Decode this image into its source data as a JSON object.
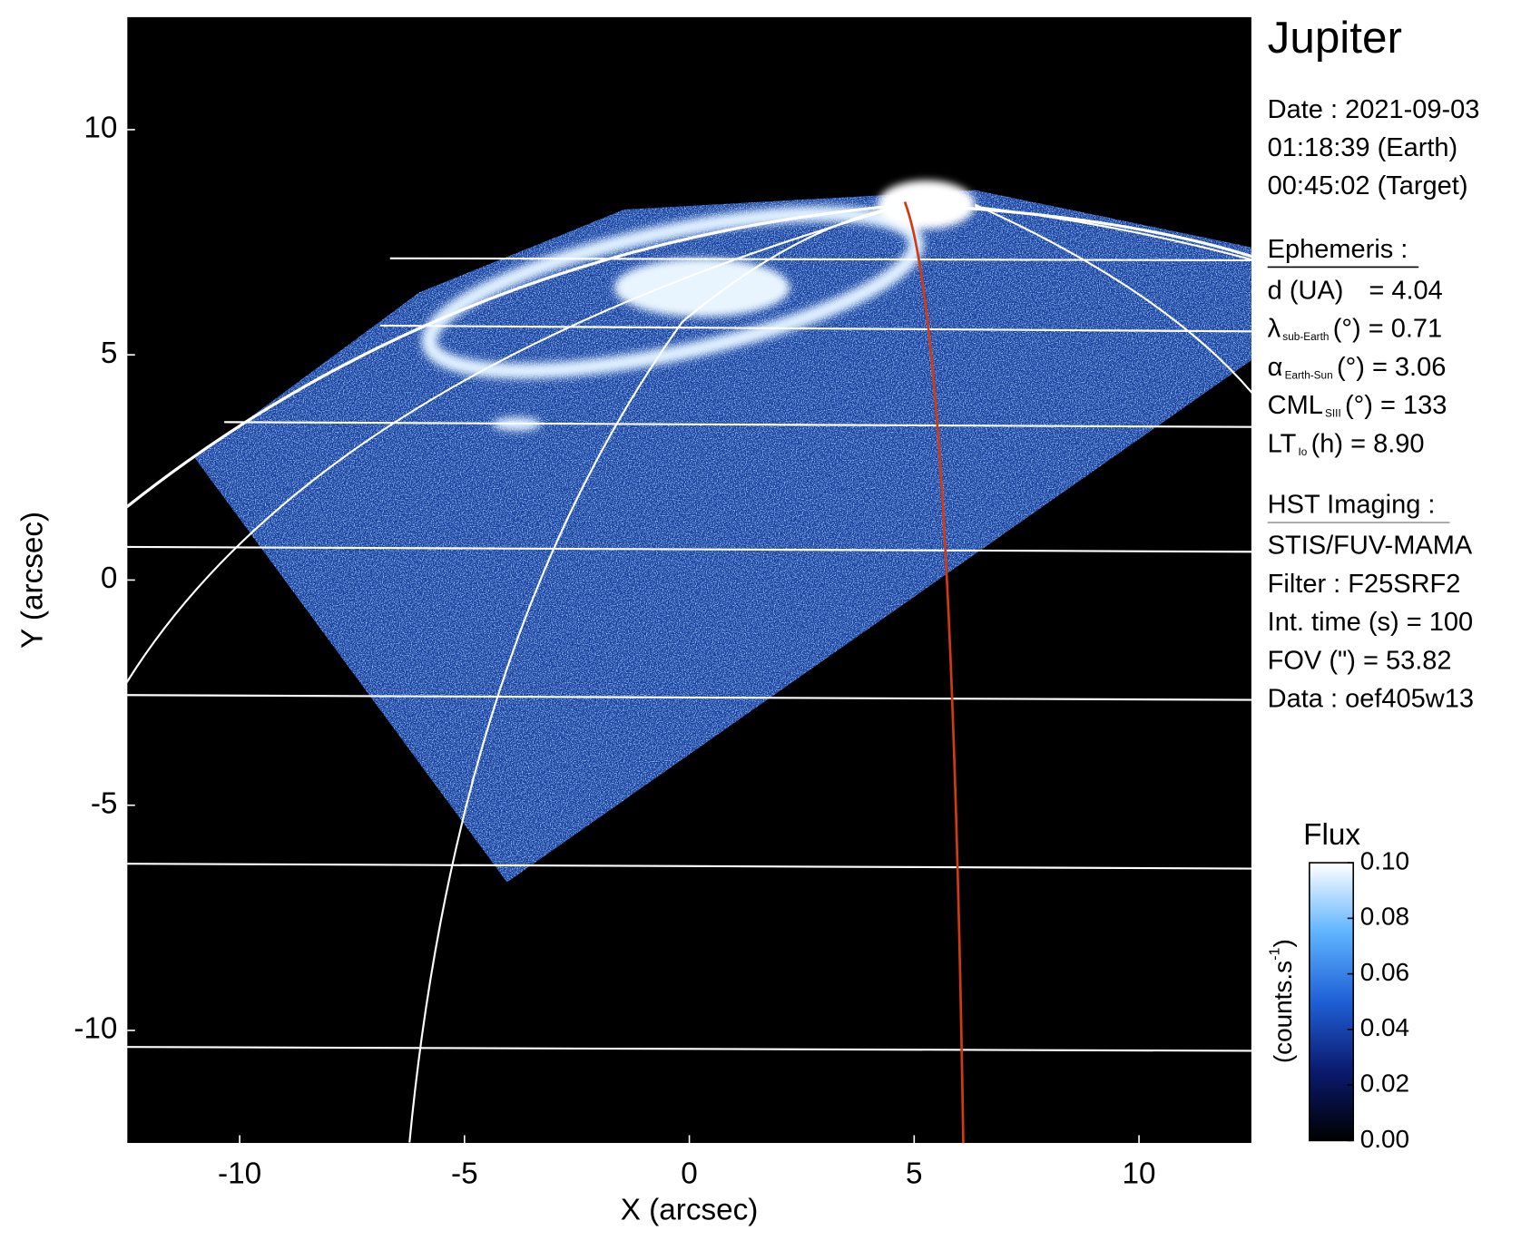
{
  "chart_data": {
    "type": "image",
    "xlabel": "X (arcsec)",
    "ylabel": "Y (arcsec)",
    "xlim": [
      -12.5,
      12.5
    ],
    "ylim": [
      -12.5,
      12.5
    ],
    "xticks": [
      -10,
      -5,
      0,
      5,
      10
    ],
    "yticks": [
      -10,
      -5,
      0,
      5,
      10
    ],
    "colorbar": {
      "title": "Flux",
      "label": "(counts.s",
      "label_sup": "-1",
      "label_end": ")",
      "clim": [
        0,
        0.1
      ],
      "ticks": [
        {
          "value": 0,
          "label": "0.00"
        },
        {
          "value": 0.02,
          "label": "0.02"
        },
        {
          "value": 0.04,
          "label": "0.04"
        },
        {
          "value": 0.06,
          "label": "0.06"
        },
        {
          "value": 0.08,
          "label": "0.08"
        },
        {
          "value": 0.1,
          "label": "0.10"
        }
      ],
      "colors": [
        "#000000",
        "#0a1a6e",
        "#1f5fd6",
        "#5fb4ff",
        "#ffffff"
      ]
    }
  },
  "info": {
    "title": "Jupiter",
    "date": [
      "Date : 2021-09-03",
      "01:18:39 (Earth)",
      "00:45:02 (Target)"
    ],
    "ephemeris_heading": "Ephemeris :",
    "ephemeris": [
      {
        "main": "d (UA)",
        "rest": "= 4.04"
      },
      {
        "main": "λ",
        "sub": "sub-Earth",
        "rest": "(°) = 0.71"
      },
      {
        "main": "α",
        "sub": "Earth-Sun",
        "rest": "(°) = 3.06"
      },
      {
        "main": "CML",
        "sub": "SIII",
        "rest": "(°) = 133"
      },
      {
        "main": "LT",
        "sub": "Io",
        "rest": "(h) = 8.90"
      }
    ],
    "hst_heading": "HST Imaging :",
    "hst": [
      "STIS/FUV-MAMA",
      "Filter : F25SRF2",
      "Int. time (s) = 100",
      "FOV (\") = 53.82",
      "Data : oef405w13"
    ]
  }
}
